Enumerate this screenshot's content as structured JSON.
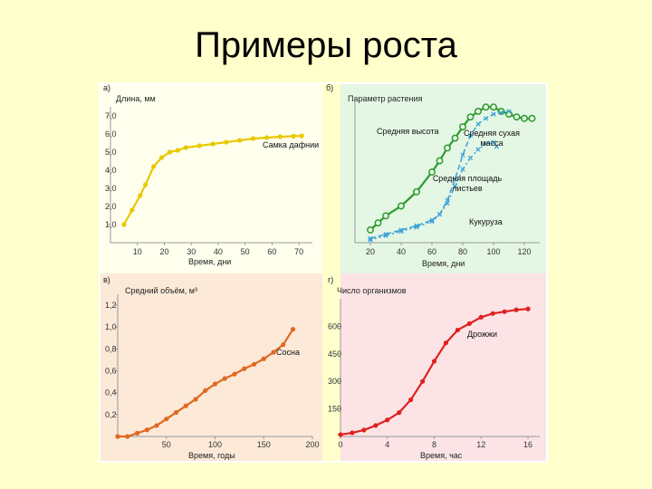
{
  "slide": {
    "title": "Примеры роста"
  },
  "chart_data": [
    {
      "type": "line",
      "panel_label": "а)",
      "ylabel": "Длина, мм",
      "xlabel": "Время, дни",
      "xlim": [
        0,
        75
      ],
      "ylim": [
        0,
        7.5
      ],
      "xticks": [
        "10",
        "20",
        "30",
        "40",
        "50",
        "60",
        "70"
      ],
      "yticks": [
        "1,0",
        "2,0",
        "3,0",
        "4,0",
        "5,0",
        "6,0",
        "7,0"
      ],
      "grid": false,
      "series": [
        {
          "name": "Самка дафнии",
          "color": "#e8c800",
          "x": [
            5,
            8,
            11,
            13,
            16,
            19,
            22,
            25,
            28,
            33,
            38,
            43,
            48,
            53,
            58,
            63,
            68,
            71
          ],
          "y": [
            1.0,
            1.8,
            2.6,
            3.2,
            4.2,
            4.7,
            5.0,
            5.1,
            5.25,
            5.35,
            5.45,
            5.55,
            5.65,
            5.75,
            5.8,
            5.85,
            5.88,
            5.9
          ]
        }
      ],
      "annotations": [
        "Самка дафнии"
      ]
    },
    {
      "type": "line",
      "panel_label": "б)",
      "ylabel": "Параметр растения",
      "xlabel": "Время, дни",
      "xlim": [
        10,
        130
      ],
      "ylim": [
        0,
        10
      ],
      "xticks": [
        "20",
        "40",
        "60",
        "80",
        "100",
        "120"
      ],
      "yticks": [],
      "grid": false,
      "series": [
        {
          "name": "Средняя высота",
          "color": "#2e9a2e",
          "x": [
            20,
            25,
            30,
            40,
            50,
            60,
            65,
            70,
            75,
            80,
            85,
            90,
            95,
            100,
            105,
            110,
            115,
            120,
            125
          ],
          "y": [
            0.9,
            1.4,
            1.9,
            2.6,
            3.6,
            5.0,
            5.8,
            6.7,
            7.4,
            8.2,
            8.9,
            9.3,
            9.6,
            9.6,
            9.3,
            9.1,
            8.9,
            8.8,
            8.8
          ]
        },
        {
          "name": "Средняя сухая масса",
          "color": "#3aa0d8",
          "x": [
            20,
            30,
            40,
            50,
            60,
            65,
            70,
            75,
            80,
            85,
            90,
            95,
            100,
            105,
            110
          ],
          "y": [
            0.3,
            0.6,
            0.9,
            1.2,
            1.6,
            2.0,
            3.0,
            4.5,
            6.2,
            7.6,
            8.4,
            8.8,
            9.1,
            9.2,
            9.3
          ]
        },
        {
          "name": "Средняя площадь листьев",
          "color": "#3aa0d8",
          "x": [
            20,
            30,
            40,
            50,
            60,
            65,
            70,
            75,
            80,
            85,
            90,
            95,
            100,
            102
          ],
          "y": [
            0.2,
            0.5,
            0.8,
            1.1,
            1.5,
            2.0,
            2.8,
            4.0,
            5.2,
            6.0,
            6.6,
            7.0,
            7.1,
            6.8
          ]
        }
      ],
      "annotations": [
        "Средняя высота",
        "Средняя сухая масса",
        "Средняя площадь листьев",
        "Кукуруза"
      ]
    },
    {
      "type": "line",
      "panel_label": "в)",
      "ylabel": "Средний объём, м³",
      "xlabel": "Время, годы",
      "xlim": [
        0,
        200
      ],
      "ylim": [
        0,
        1.3
      ],
      "xticks": [
        "50",
        "100",
        "150",
        "200"
      ],
      "yticks": [
        "0,2",
        "0,4",
        "0,6",
        "0,8",
        "1,0",
        "1,2"
      ],
      "grid": false,
      "series": [
        {
          "name": "Сосна",
          "color": "#e06820",
          "x": [
            0,
            10,
            20,
            30,
            40,
            50,
            60,
            70,
            80,
            90,
            100,
            110,
            120,
            130,
            140,
            150,
            160,
            170,
            180
          ],
          "y": [
            0.0,
            0.0,
            0.03,
            0.06,
            0.1,
            0.16,
            0.22,
            0.28,
            0.34,
            0.42,
            0.48,
            0.53,
            0.57,
            0.62,
            0.66,
            0.71,
            0.77,
            0.84,
            0.98
          ]
        }
      ],
      "annotations": [
        "Сосна"
      ]
    },
    {
      "type": "line",
      "panel_label": "г)",
      "ylabel": "Число организмов",
      "xlabel": "Время, час",
      "xlim": [
        0,
        17
      ],
      "ylim": [
        0,
        750
      ],
      "xticks": [
        "0",
        "4",
        "8",
        "12",
        "16"
      ],
      "yticks": [
        "150",
        "300",
        "450",
        "600"
      ],
      "grid": false,
      "series": [
        {
          "name": "Дрожжи",
          "color": "#e02020",
          "x": [
            0,
            1,
            2,
            3,
            4,
            5,
            6,
            7,
            8,
            9,
            10,
            11,
            12,
            13,
            14,
            15,
            16
          ],
          "y": [
            10,
            20,
            35,
            60,
            90,
            130,
            200,
            300,
            410,
            510,
            580,
            615,
            650,
            670,
            680,
            690,
            695
          ]
        }
      ],
      "annotations": [
        "Дрожжи"
      ]
    }
  ]
}
